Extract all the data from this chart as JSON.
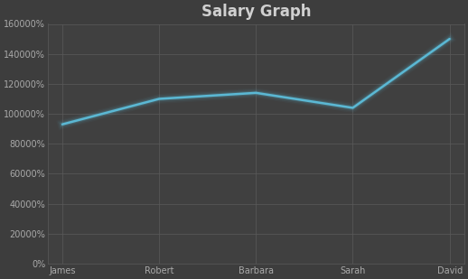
{
  "title": "Salary Graph",
  "categories": [
    "James",
    "Robert",
    "Barbara",
    "Sarah",
    "David"
  ],
  "values": [
    0.93,
    1.1,
    1.14,
    1.04,
    1.5
  ],
  "line_color": "#5bb8d4",
  "line_width": 1.8,
  "bg_color": "#3d3d3d",
  "plot_bg_color": "#404040",
  "title_color": "#d0d0d0",
  "title_fontsize": 12,
  "tick_color": "#aaaaaa",
  "tick_fontsize": 7,
  "grid_color": "#5a5a5a",
  "ylim": [
    0.0,
    1.6
  ],
  "yticks": [
    0.0,
    0.2,
    0.4,
    0.6,
    0.8,
    1.0,
    1.2,
    1.4,
    1.6
  ],
  "ytick_labels": [
    "0%",
    "20000%",
    "40000%",
    "60000%",
    "80000%",
    "100000%",
    "120000%",
    "140000%",
    "160000%"
  ]
}
